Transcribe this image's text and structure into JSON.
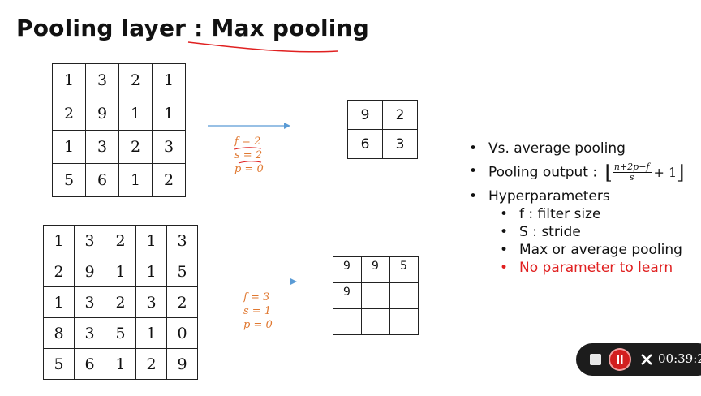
{
  "title": {
    "prefix": "Pooling layer : ",
    "emphasis": "Max pooling"
  },
  "example1": {
    "input": [
      [
        "1",
        "3",
        "2",
        "1"
      ],
      [
        "2",
        "9",
        "1",
        "1"
      ],
      [
        "1",
        "3",
        "2",
        "3"
      ],
      [
        "5",
        "6",
        "1",
        "2"
      ]
    ],
    "params": [
      "f = 2",
      "s = 2",
      "p = 0"
    ],
    "output": [
      [
        "9",
        "2"
      ],
      [
        "6",
        "3"
      ]
    ]
  },
  "example2": {
    "input": [
      [
        "1",
        "3",
        "2",
        "1",
        "3"
      ],
      [
        "2",
        "9",
        "1",
        "1",
        "5"
      ],
      [
        "1",
        "3",
        "2",
        "3",
        "2"
      ],
      [
        "8",
        "3",
        "5",
        "1",
        "0"
      ],
      [
        "5",
        "6",
        "1",
        "2",
        "9"
      ]
    ],
    "params": [
      "f = 3",
      "s = 1",
      "p = 0"
    ],
    "output": [
      [
        "9",
        "9",
        "5"
      ],
      [
        "9",
        "",
        ""
      ],
      [
        "",
        "",
        ""
      ]
    ]
  },
  "bullets": {
    "vs": "Vs. average pooling",
    "pooling_output": "Pooling output : ",
    "formula_num": "n+2p−f",
    "formula_den": "s",
    "formula_plus": "+ 1",
    "hyper": "Hyperparameters",
    "sub": [
      "f : filter size",
      "S : stride",
      "Max or average pooling"
    ],
    "red": "No parameter to learn"
  },
  "recorder": {
    "time": "00:39:2"
  },
  "colors": {
    "accent_red": "#e02020",
    "param_orange": "#e07830",
    "arrow_blue": "#5a9bd5"
  }
}
